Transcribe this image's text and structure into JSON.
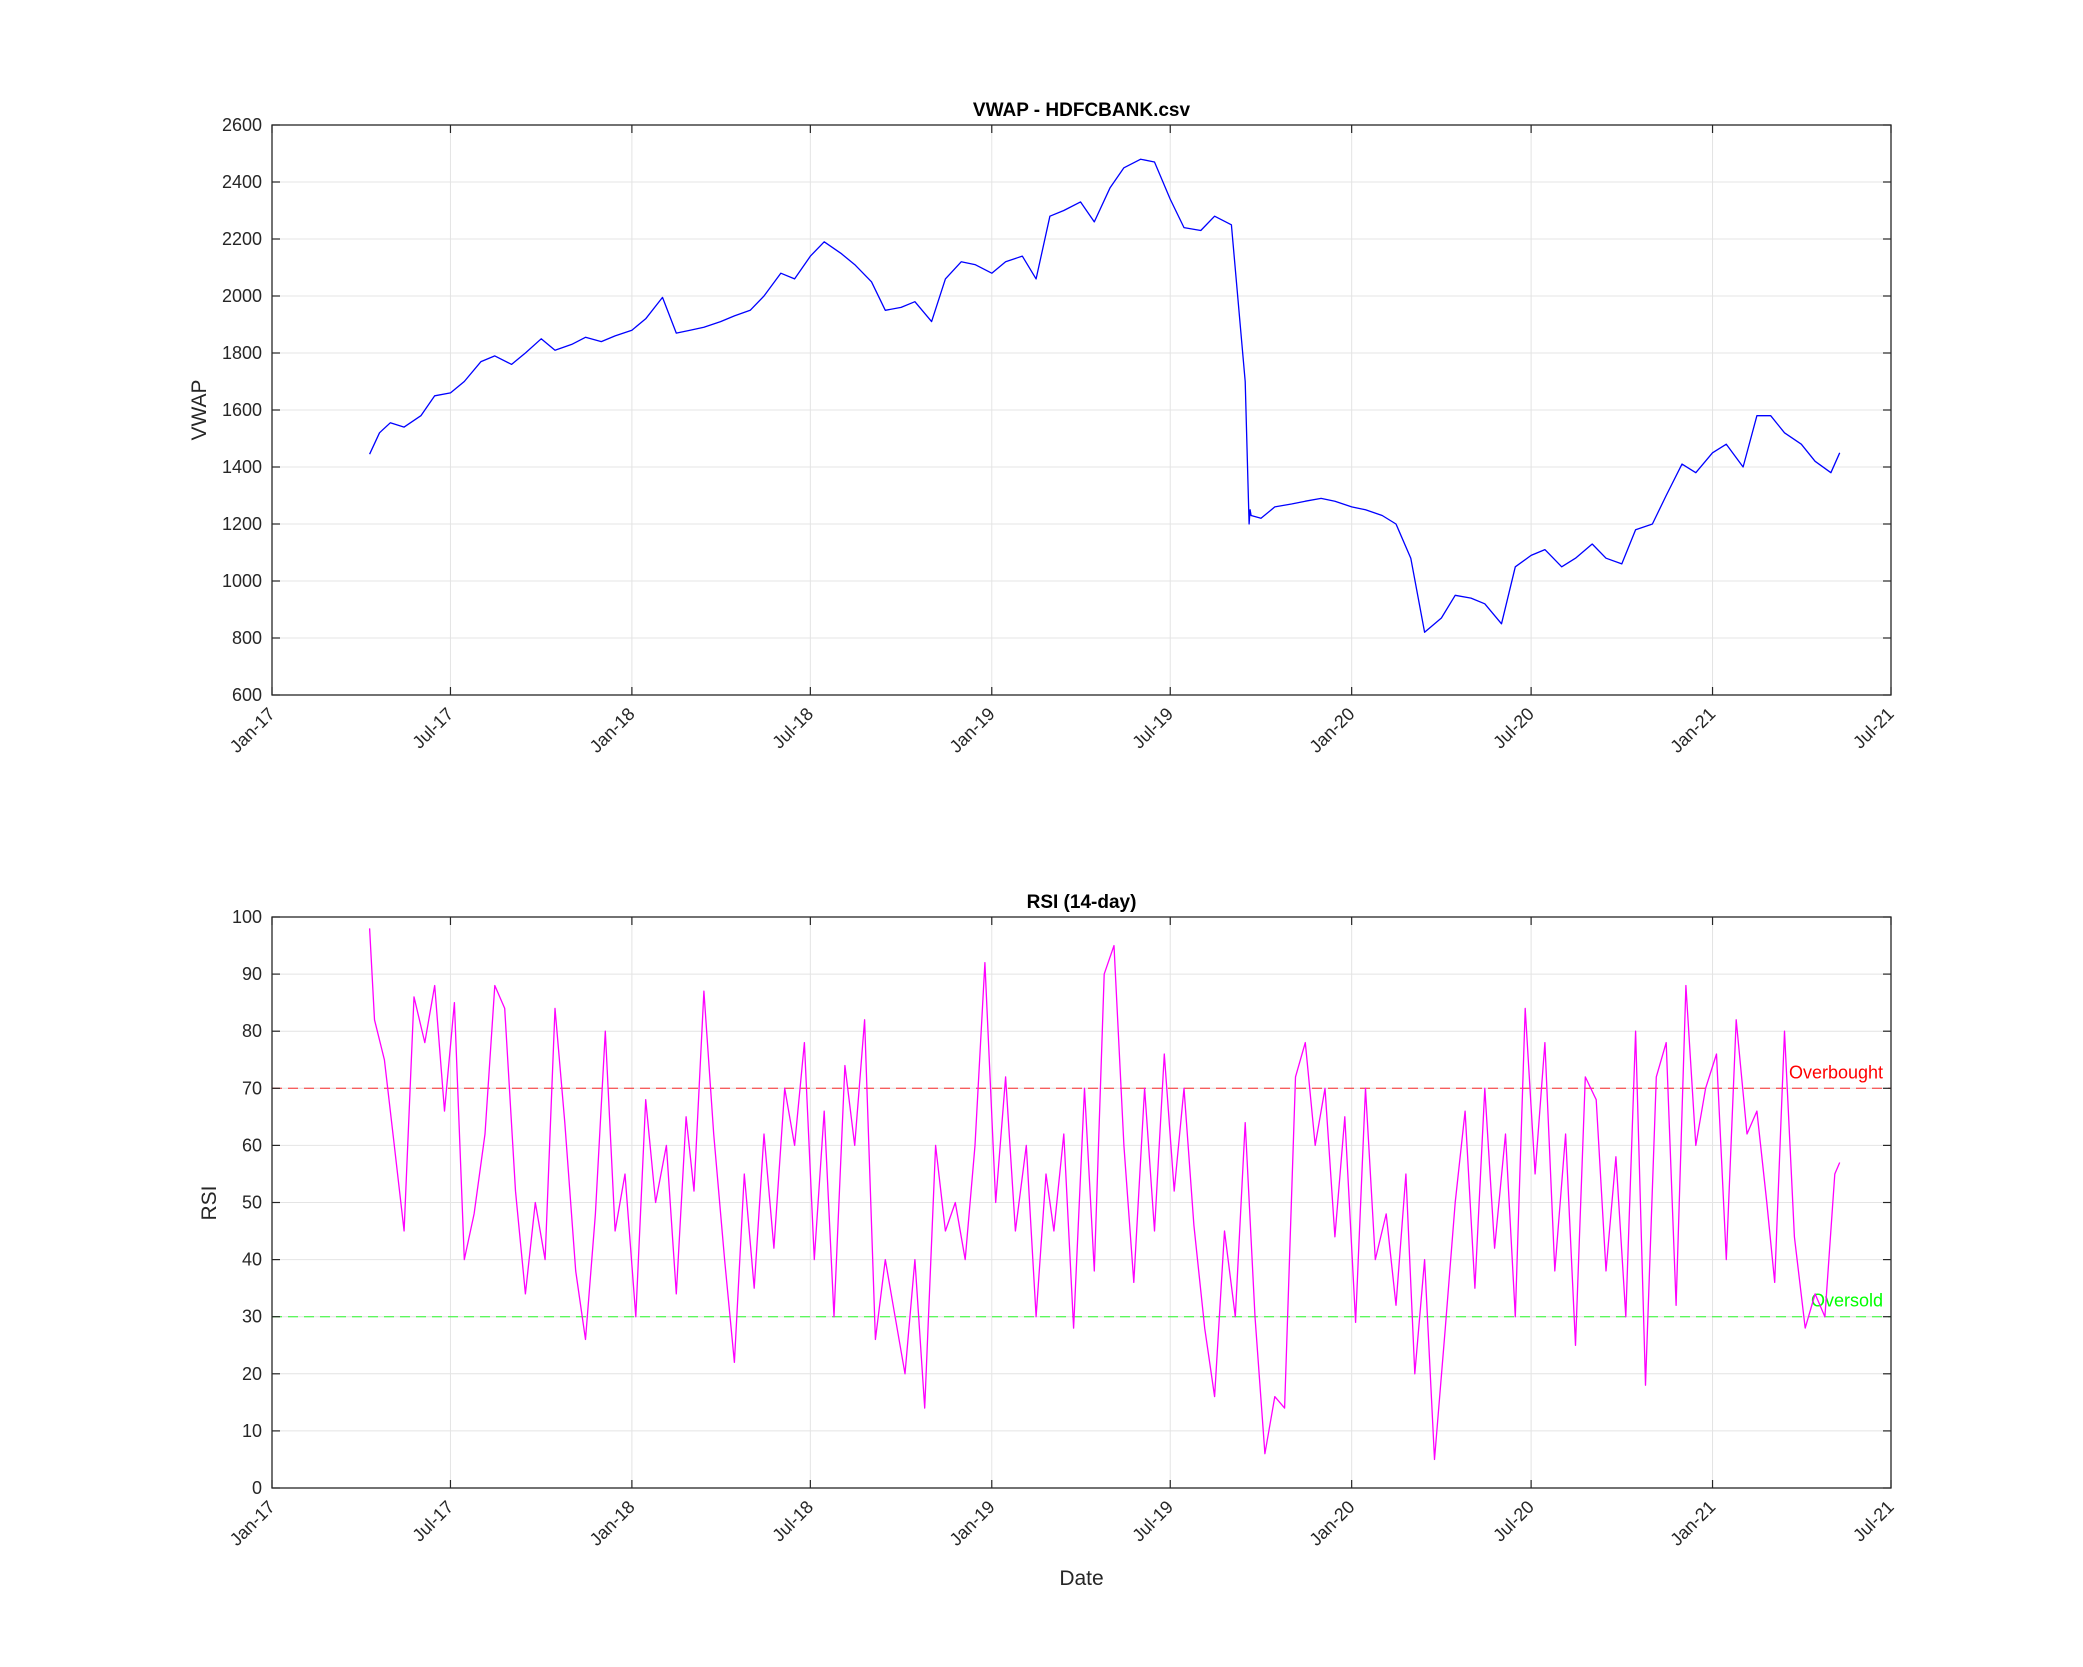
{
  "chart_data": [
    {
      "type": "line",
      "title": "VWAP - HDFCBANK.csv",
      "xlabel": "",
      "ylabel": "VWAP",
      "xlim": [
        "2017-01-01",
        "2021-07-01"
      ],
      "ylim": [
        600,
        2600
      ],
      "yticks": [
        600,
        800,
        1000,
        1200,
        1400,
        1600,
        1800,
        2000,
        2200,
        2400,
        2600
      ],
      "xticks": [
        {
          "date": "2017-01-01",
          "label": "Jan-17"
        },
        {
          "date": "2017-07-01",
          "label": "Jul-17"
        },
        {
          "date": "2018-01-01",
          "label": "Jan-18"
        },
        {
          "date": "2018-07-01",
          "label": "Jul-18"
        },
        {
          "date": "2019-01-01",
          "label": "Jan-19"
        },
        {
          "date": "2019-07-01",
          "label": "Jul-19"
        },
        {
          "date": "2020-01-01",
          "label": "Jan-20"
        },
        {
          "date": "2020-07-01",
          "label": "Jul-20"
        },
        {
          "date": "2021-01-01",
          "label": "Jan-21"
        },
        {
          "date": "2021-07-01",
          "label": "Jul-21"
        }
      ],
      "grid": true,
      "line_color": "#0000ff",
      "series": [
        {
          "x": [
            "2017-04-10",
            "2017-04-20",
            "2017-05-01",
            "2017-05-15",
            "2017-06-01",
            "2017-06-15",
            "2017-07-01",
            "2017-07-15",
            "2017-08-01",
            "2017-08-15",
            "2017-09-01",
            "2017-09-15",
            "2017-10-01",
            "2017-10-15",
            "2017-11-01",
            "2017-11-15",
            "2017-12-01",
            "2017-12-15",
            "2018-01-01",
            "2018-01-15",
            "2018-02-01",
            "2018-02-15",
            "2018-03-01",
            "2018-03-15",
            "2018-04-01",
            "2018-04-15",
            "2018-05-01",
            "2018-05-15",
            "2018-06-01",
            "2018-06-15",
            "2018-07-01",
            "2018-07-15",
            "2018-08-01",
            "2018-08-15",
            "2018-09-01",
            "2018-09-15",
            "2018-10-01",
            "2018-10-15",
            "2018-11-01",
            "2018-11-15",
            "2018-12-01",
            "2018-12-15",
            "2019-01-01",
            "2019-01-15",
            "2019-02-01",
            "2019-02-15",
            "2019-03-01",
            "2019-03-15",
            "2019-04-01",
            "2019-04-15",
            "2019-05-01",
            "2019-05-15",
            "2019-06-01",
            "2019-06-15",
            "2019-07-01",
            "2019-07-15",
            "2019-08-01",
            "2019-08-15",
            "2019-09-01",
            "2019-09-15",
            "2019-09-19",
            "2019-09-20",
            "2019-09-21",
            "2019-10-01",
            "2019-10-15",
            "2019-11-01",
            "2019-11-15",
            "2019-12-01",
            "2019-12-15",
            "2020-01-01",
            "2020-01-15",
            "2020-02-01",
            "2020-02-15",
            "2020-03-01",
            "2020-03-15",
            "2020-04-01",
            "2020-04-15",
            "2020-05-01",
            "2020-05-15",
            "2020-06-01",
            "2020-06-15",
            "2020-07-01",
            "2020-07-15",
            "2020-08-01",
            "2020-08-15",
            "2020-09-01",
            "2020-09-15",
            "2020-10-01",
            "2020-10-15",
            "2020-11-01",
            "2020-11-15",
            "2020-12-01",
            "2020-12-15",
            "2021-01-01",
            "2021-01-15",
            "2021-02-01",
            "2021-02-15",
            "2021-03-01",
            "2021-03-15",
            "2021-04-01",
            "2021-04-15",
            "2021-05-01",
            "2021-05-10"
          ],
          "y": [
            1445,
            1520,
            1555,
            1540,
            1580,
            1650,
            1660,
            1700,
            1770,
            1790,
            1760,
            1800,
            1850,
            1810,
            1830,
            1855,
            1840,
            1860,
            1880,
            1920,
            1995,
            1870,
            1880,
            1890,
            1910,
            1930,
            1950,
            2000,
            2080,
            2060,
            2140,
            2190,
            2150,
            2110,
            2050,
            1950,
            1960,
            1980,
            1910,
            2060,
            2120,
            2110,
            2080,
            2120,
            2140,
            2060,
            2280,
            2300,
            2330,
            2260,
            2380,
            2450,
            2480,
            2470,
            2340,
            2240,
            2230,
            2280,
            2250,
            1700,
            1200,
            1250,
            1230,
            1220,
            1260,
            1270,
            1280,
            1290,
            1280,
            1260,
            1250,
            1230,
            1200,
            1080,
            820,
            870,
            950,
            940,
            920,
            850,
            1050,
            1090,
            1110,
            1050,
            1080,
            1130,
            1080,
            1060,
            1180,
            1200,
            1300,
            1410,
            1380,
            1450,
            1480,
            1400,
            1580,
            1580,
            1520,
            1480,
            1420,
            1380,
            1450
          ]
        }
      ]
    },
    {
      "type": "line",
      "title": "RSI (14-day)",
      "xlabel": "Date",
      "ylabel": "RSI",
      "xlim": [
        "2017-01-01",
        "2021-07-01"
      ],
      "ylim": [
        0,
        100
      ],
      "yticks": [
        0,
        10,
        20,
        30,
        40,
        50,
        60,
        70,
        80,
        90,
        100
      ],
      "xticks": [
        {
          "date": "2017-01-01",
          "label": "Jan-17"
        },
        {
          "date": "2017-07-01",
          "label": "Jul-17"
        },
        {
          "date": "2018-01-01",
          "label": "Jan-18"
        },
        {
          "date": "2018-07-01",
          "label": "Jul-18"
        },
        {
          "date": "2019-01-01",
          "label": "Jan-19"
        },
        {
          "date": "2019-07-01",
          "label": "Jul-19"
        },
        {
          "date": "2020-01-01",
          "label": "Jan-20"
        },
        {
          "date": "2020-07-01",
          "label": "Jul-20"
        },
        {
          "date": "2021-01-01",
          "label": "Jan-21"
        },
        {
          "date": "2021-07-01",
          "label": "Jul-21"
        }
      ],
      "grid": true,
      "line_color": "#ff00ff",
      "series": [
        {
          "x": [
            "2017-04-10",
            "2017-04-15",
            "2017-04-25",
            "2017-05-05",
            "2017-05-15",
            "2017-05-25",
            "2017-06-05",
            "2017-06-15",
            "2017-06-25",
            "2017-07-05",
            "2017-07-15",
            "2017-07-25",
            "2017-08-05",
            "2017-08-15",
            "2017-08-25",
            "2017-09-05",
            "2017-09-15",
            "2017-09-25",
            "2017-10-05",
            "2017-10-15",
            "2017-10-25",
            "2017-11-05",
            "2017-11-15",
            "2017-11-25",
            "2017-12-05",
            "2017-12-15",
            "2017-12-25",
            "2018-01-05",
            "2018-01-15",
            "2018-01-25",
            "2018-02-05",
            "2018-02-15",
            "2018-02-25",
            "2018-03-05",
            "2018-03-15",
            "2018-03-25",
            "2018-04-05",
            "2018-04-15",
            "2018-04-25",
            "2018-05-05",
            "2018-05-15",
            "2018-05-25",
            "2018-06-05",
            "2018-06-15",
            "2018-06-25",
            "2018-07-05",
            "2018-07-15",
            "2018-07-25",
            "2018-08-05",
            "2018-08-15",
            "2018-08-25",
            "2018-09-05",
            "2018-09-15",
            "2018-09-25",
            "2018-10-05",
            "2018-10-15",
            "2018-10-25",
            "2018-11-05",
            "2018-11-15",
            "2018-11-25",
            "2018-12-05",
            "2018-12-15",
            "2018-12-25",
            "2019-01-05",
            "2019-01-15",
            "2019-01-25",
            "2019-02-05",
            "2019-02-15",
            "2019-02-25",
            "2019-03-05",
            "2019-03-15",
            "2019-03-25",
            "2019-04-05",
            "2019-04-15",
            "2019-04-25",
            "2019-05-05",
            "2019-05-15",
            "2019-05-25",
            "2019-06-05",
            "2019-06-15",
            "2019-06-25",
            "2019-07-05",
            "2019-07-15",
            "2019-07-25",
            "2019-08-05",
            "2019-08-15",
            "2019-08-25",
            "2019-09-05",
            "2019-09-15",
            "2019-09-25",
            "2019-10-05",
            "2019-10-15",
            "2019-10-25",
            "2019-11-05",
            "2019-11-15",
            "2019-11-25",
            "2019-12-05",
            "2019-12-15",
            "2019-12-25",
            "2020-01-05",
            "2020-01-15",
            "2020-01-25",
            "2020-02-05",
            "2020-02-15",
            "2020-02-25",
            "2020-03-05",
            "2020-03-15",
            "2020-03-25",
            "2020-04-05",
            "2020-04-15",
            "2020-04-25",
            "2020-05-05",
            "2020-05-15",
            "2020-05-25",
            "2020-06-05",
            "2020-06-15",
            "2020-06-25",
            "2020-07-05",
            "2020-07-15",
            "2020-07-25",
            "2020-08-05",
            "2020-08-15",
            "2020-08-25",
            "2020-09-05",
            "2020-09-15",
            "2020-09-25",
            "2020-10-05",
            "2020-10-15",
            "2020-10-25",
            "2020-11-05",
            "2020-11-15",
            "2020-11-25",
            "2020-12-05",
            "2020-12-15",
            "2020-12-25",
            "2021-01-05",
            "2021-01-15",
            "2021-01-25",
            "2021-02-05",
            "2021-02-15",
            "2021-02-25",
            "2021-03-05",
            "2021-03-15",
            "2021-03-25",
            "2021-04-05",
            "2021-04-15",
            "2021-04-25",
            "2021-05-05",
            "2021-05-10"
          ],
          "y": [
            98,
            82,
            75,
            60,
            45,
            86,
            78,
            88,
            66,
            85,
            40,
            48,
            62,
            88,
            84,
            52,
            34,
            50,
            40,
            84,
            64,
            38,
            26,
            48,
            80,
            45,
            55,
            30,
            68,
            50,
            60,
            34,
            65,
            52,
            87,
            62,
            40,
            22,
            55,
            35,
            62,
            42,
            70,
            60,
            78,
            40,
            66,
            30,
            74,
            60,
            82,
            26,
            40,
            30,
            20,
            40,
            14,
            60,
            45,
            50,
            40,
            60,
            92,
            50,
            72,
            45,
            60,
            30,
            55,
            45,
            62,
            28,
            70,
            38,
            90,
            95,
            60,
            36,
            70,
            45,
            76,
            52,
            70,
            46,
            28,
            16,
            45,
            30,
            64,
            30,
            6,
            16,
            14,
            72,
            78,
            60,
            70,
            44,
            65,
            29,
            70,
            40,
            48,
            32,
            55,
            20,
            40,
            5,
            28,
            50,
            66,
            35,
            70,
            42,
            62,
            30,
            84,
            55,
            78,
            38,
            62,
            25,
            72,
            68,
            38,
            58,
            30,
            80,
            18,
            72,
            78,
            32,
            88,
            60,
            70,
            76,
            40,
            82,
            62,
            66,
            50,
            36,
            80,
            44,
            28,
            34,
            30,
            55,
            57
          ]
        }
      ],
      "reference_lines": [
        {
          "y": 70,
          "label": "Overbought",
          "color": "#ff0000"
        },
        {
          "y": 30,
          "label": "Oversold",
          "color": "#00ff00"
        }
      ]
    }
  ]
}
